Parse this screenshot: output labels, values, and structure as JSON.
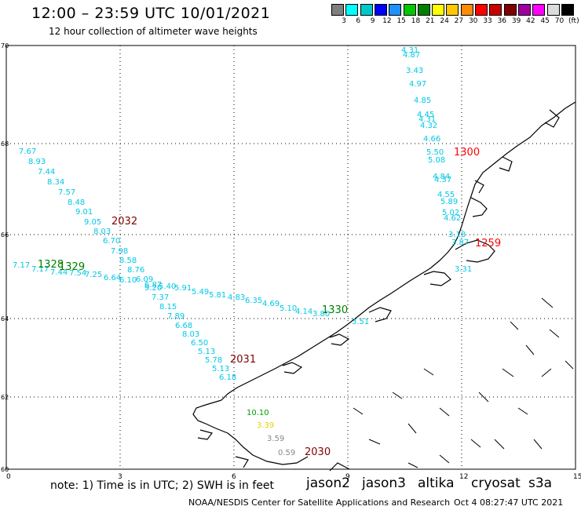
{
  "header": {
    "title": "12:00 – 23:59 UTC 10/01/2021",
    "subtitle": "12 hour collection of altimeter wave heights"
  },
  "legend": {
    "colors": [
      "#7f7f7f",
      "#00ffff",
      "#00c8c8",
      "#0000ff",
      "#1e90ff",
      "#00c800",
      "#008000",
      "#ffff00",
      "#ffc800",
      "#ff8c00",
      "#ff0000",
      "#c80000",
      "#800000",
      "#a000a0",
      "#ff00ff",
      "#dcdcdc",
      "#000000"
    ],
    "labels": [
      "3",
      "6",
      "9",
      "12",
      "15",
      "18",
      "21",
      "24",
      "27",
      "30",
      "33",
      "36",
      "39",
      "42",
      "45",
      "70",
      "(ft)"
    ]
  },
  "axes": {
    "lon_ticks": [
      "0",
      "3",
      "6",
      "9",
      "12",
      "15"
    ],
    "lat_ticks": [
      "70",
      "68",
      "66",
      "64",
      "62",
      "60"
    ]
  },
  "tracks": [
    {
      "name": "cyan-west",
      "color": "#00c8e6",
      "values": [
        "7.67",
        "8.93",
        "7.44",
        "8.34",
        "7.57",
        "8.48",
        "9.01",
        "9.05",
        "8.03",
        "6.70",
        "7.98",
        "8.58",
        "8.76",
        "6.09",
        "6.87",
        "9.20",
        "7.37",
        "8.15",
        "7.89",
        "6.68",
        "8.03",
        "6.50",
        "5.13",
        "5.78",
        "5.13",
        "6.18"
      ]
    },
    {
      "name": "cyan-north",
      "color": "#00c8e6",
      "values": [
        "4.31",
        "4.87",
        "3.43",
        "4.97",
        "4.85",
        "4.45",
        "4.31",
        "4.32",
        "4.66",
        "5.50",
        "5.08",
        "4.84",
        "4.37",
        "4.55",
        "5.89",
        "5.02",
        "4.62",
        "3.18",
        "3.87",
        "3.31"
      ]
    },
    {
      "name": "cyan-mid",
      "color": "#00c8e6",
      "values": [
        "7.17",
        "7.17",
        "7.44",
        "7.54",
        "7.25",
        "6.64",
        "6.10",
        "5.40",
        "5.91",
        "5.49",
        "5.81",
        "4.83",
        "6.35",
        "4.69",
        "5.10",
        "4.14",
        "3.80",
        "3.51"
      ]
    },
    {
      "name": "south",
      "color": "#888888",
      "values": [
        "3.59",
        "0.59"
      ]
    }
  ],
  "highlight_values": {
    "green": "10.10",
    "yellow": "3.39"
  },
  "pass_times": [
    {
      "text": "2032",
      "color": "#800000"
    },
    {
      "text": "1300",
      "color": "#ff0000"
    },
    {
      "text": "1259",
      "color": "#ff0000"
    },
    {
      "text": "1328",
      "color": "#008000"
    },
    {
      "text": "1329",
      "color": "#008000"
    },
    {
      "text": "1330",
      "color": "#008000"
    },
    {
      "text": "2031",
      "color": "#800000"
    },
    {
      "text": "2030",
      "color": "#800000"
    }
  ],
  "footer": {
    "note": "note: 1) Time is in UTC; 2) SWH is in feet",
    "satellites": [
      {
        "name": "jason2",
        "color": "#0000ff"
      },
      {
        "name": "jason3",
        "color": "#008000"
      },
      {
        "name": "altika",
        "color": "#ff8c00"
      },
      {
        "name": "cryosat",
        "color": "#ff0000"
      },
      {
        "name": "s3a",
        "color": "#800000"
      }
    ],
    "credit": "NOAA/NESDIS Center for Satellite Applications and Research",
    "timestamp": "Oct  4 08:27:47 UTC 2021"
  }
}
